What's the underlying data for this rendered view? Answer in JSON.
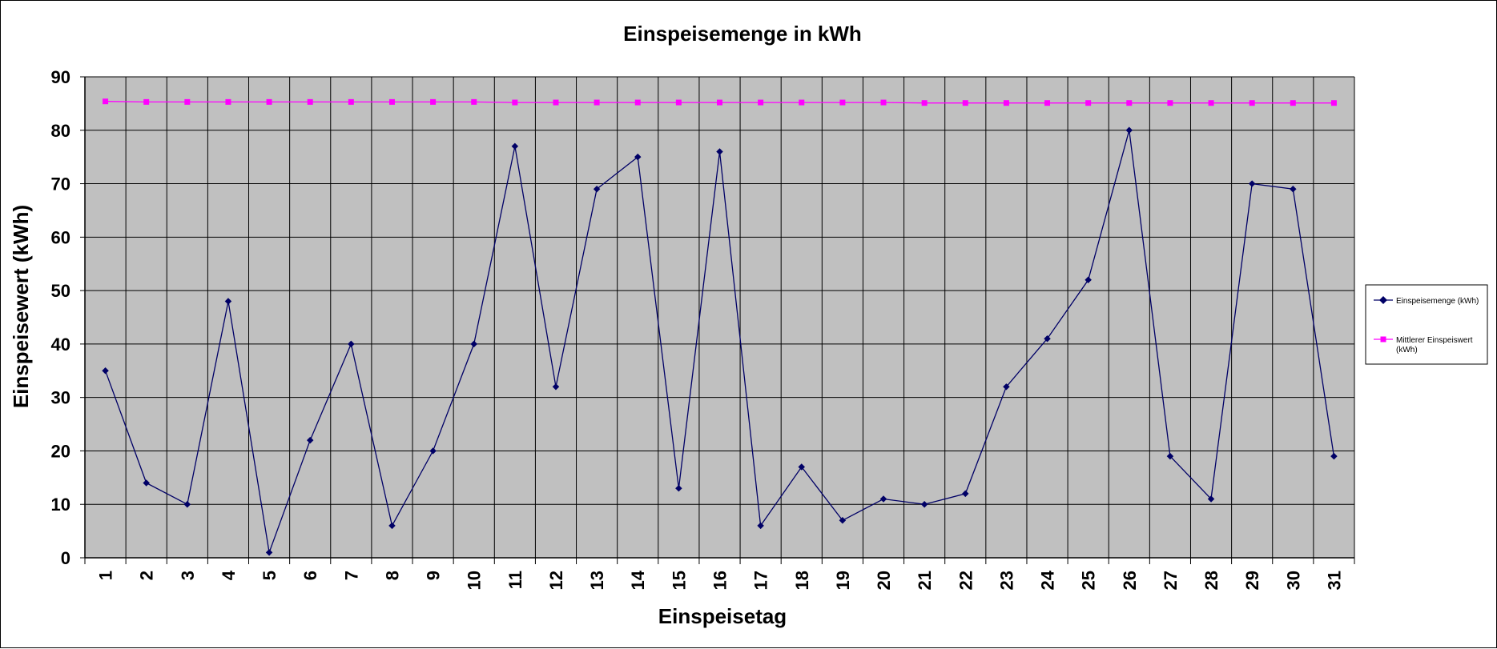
{
  "chart_data": {
    "type": "line",
    "title": "Einspeisemenge in kWh",
    "xlabel": "Einspeisetag",
    "ylabel": "Einspeisewert  (kWh)",
    "ylim": [
      0,
      90
    ],
    "ytick_step": 10,
    "grid": true,
    "legend_position": "right",
    "background_color": "#c0c0c0",
    "x": [
      1,
      2,
      3,
      4,
      5,
      6,
      7,
      8,
      9,
      10,
      11,
      12,
      13,
      14,
      15,
      16,
      17,
      18,
      19,
      20,
      21,
      22,
      23,
      24,
      25,
      26,
      27,
      28,
      29,
      30,
      31
    ],
    "series": [
      {
        "name": "Einspeisemenge (kWh)",
        "color": "#000066",
        "marker": "diamond",
        "values": [
          35,
          14,
          10,
          48,
          1,
          22,
          40,
          6,
          20,
          40,
          77,
          32,
          69,
          75,
          13,
          76,
          6,
          17,
          7,
          11,
          10,
          12,
          32,
          41,
          52,
          80,
          19,
          11,
          70,
          69,
          19
        ]
      },
      {
        "name": "Mittlerer Einspeiswert (kWh)",
        "color": "#ff00ff",
        "marker": "square",
        "values": [
          85.4,
          85.3,
          85.3,
          85.3,
          85.3,
          85.3,
          85.3,
          85.3,
          85.3,
          85.3,
          85.2,
          85.2,
          85.2,
          85.2,
          85.2,
          85.2,
          85.2,
          85.2,
          85.2,
          85.2,
          85.1,
          85.1,
          85.1,
          85.1,
          85.1,
          85.1,
          85.1,
          85.1,
          85.1,
          85.1,
          85.1
        ]
      }
    ]
  }
}
